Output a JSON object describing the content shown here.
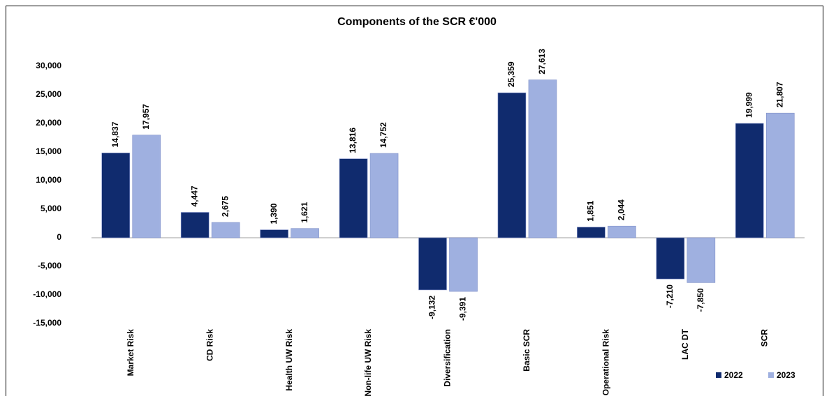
{
  "chart_data": {
    "type": "bar",
    "title": "Components of the SCR €'000",
    "categories": [
      "Market Risk",
      "CD Risk",
      "Health UW Risk",
      "Non-life UW Risk",
      "Diversification",
      "Basic SCR",
      "Operational Risk",
      "LAC DT",
      "SCR"
    ],
    "series": [
      {
        "name": "2022",
        "color": "#102b6e",
        "values": [
          14837,
          4447,
          1390,
          13816,
          -9132,
          25359,
          1851,
          -7210,
          19999
        ],
        "value_labels": [
          "14,837",
          "4,447",
          "1,390",
          "13,816",
          "-9,132",
          "25,359",
          "1,851",
          "-7,210",
          "19,999"
        ]
      },
      {
        "name": "2023",
        "color": "#9fb0e0",
        "values": [
          17957,
          2675,
          1621,
          14752,
          -9391,
          27613,
          2044,
          -7850,
          21807
        ],
        "value_labels": [
          "17,957",
          "2,675",
          "1,621",
          "14,752",
          "-9,391",
          "27,613",
          "2,044",
          "-7,850",
          "21,807"
        ]
      }
    ],
    "ylim": [
      -15000,
      30000
    ],
    "yticks": [
      {
        "value": 30000,
        "label": "30,000"
      },
      {
        "value": 25000,
        "label": "25,000"
      },
      {
        "value": 20000,
        "label": "20,000"
      },
      {
        "value": 15000,
        "label": "15,000"
      },
      {
        "value": 10000,
        "label": "10,000"
      },
      {
        "value": 5000,
        "label": "5,000"
      },
      0,
      {
        "value": -5000,
        "label": "-5,000"
      },
      {
        "value": -10000,
        "label": "-10,000"
      },
      {
        "value": -15000,
        "label": "-15,000"
      }
    ],
    "legend": "bottom-right"
  }
}
